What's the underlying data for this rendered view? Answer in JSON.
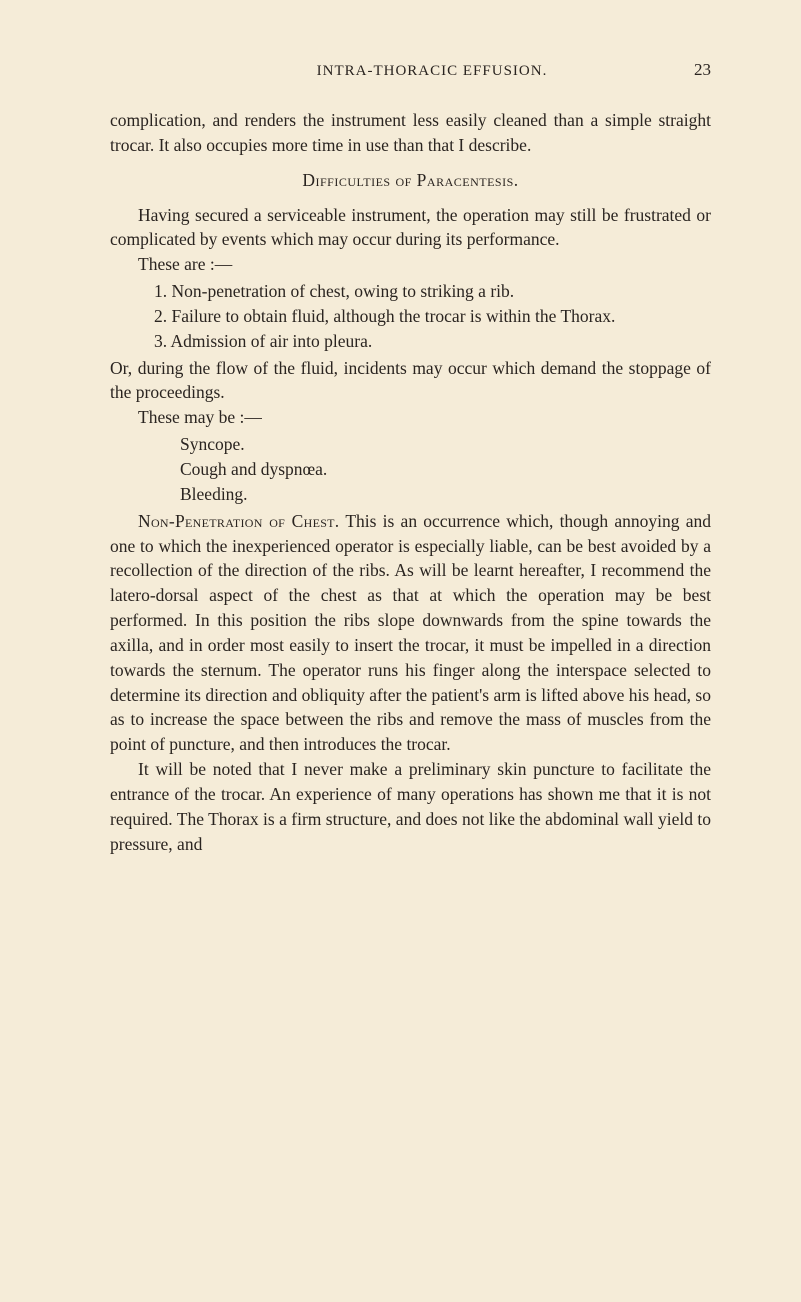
{
  "page": {
    "running_head": "INTRA-THORACIC EFFUSION.",
    "number": "23",
    "background_color": "#f5ecd8",
    "text_color": "#2a2420",
    "body_fontsize": 17.5,
    "line_height": 1.42
  },
  "p1": "complication, and renders the instrument less easily cleaned than a simple straight trocar. It also occupies more time in use than that I describe.",
  "section1_title": "Difficulties of Paracentesis.",
  "p2": "Having secured a serviceable instrument, the operation may still be frustrated or complicated by events which may occur during its performance.",
  "p3": "These are :—",
  "list1": {
    "i1": "1. Non-penetration of chest, owing to striking a rib.",
    "i2": "2. Failure to obtain fluid, although the trocar is within the Thorax.",
    "i3": "3. Admission of air into pleura."
  },
  "p4": "Or, during the flow of the fluid, incidents may occur which demand the stoppage of the proceedings.",
  "p5": "These may be :—",
  "list2": {
    "i1": "Syncope.",
    "i2": "Cough and dyspnœa.",
    "i3": "Bleeding."
  },
  "p6_lead": "Non-Penetration of Chest.",
  "p6_body": " This is an occurrence which, though annoying and one to which the inexperienced operator is especially liable, can be best avoided by a recollection of the direction of the ribs. As will be learnt hereafter, I recommend the latero-dorsal aspect of the chest as that at which the operation may be best performed. In this position the ribs slope downwards from the spine towards the axilla, and in order most easily to insert the trocar, it must be impelled in a direction towards the sternum. The operator runs his finger along the interspace selected to determine its direction and obliquity after the patient's arm is lifted above his head, so as to increase the space between the ribs and remove the mass of muscles from the point of puncture, and then introduces the trocar.",
  "p7": "It will be noted that I never make a preliminary skin puncture to facilitate the entrance of the trocar. An experience of many operations has shown me that it is not required. The Thorax is a firm structure, and does not like the abdominal wall yield to pressure, and"
}
